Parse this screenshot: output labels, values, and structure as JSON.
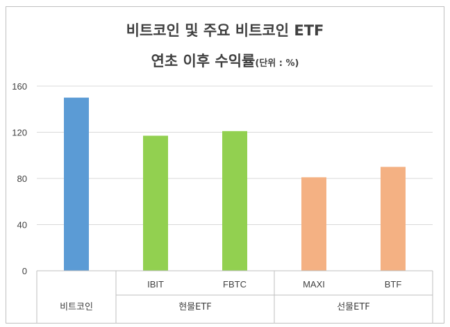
{
  "chart_data": {
    "type": "bar",
    "title_line1": "비트코인 및 주요 비트코인 ETF",
    "title_line2": "연초 이후 수익률",
    "title_unit": "(단위 : %)",
    "categories": [
      "",
      "IBIT",
      "FBTC",
      "MAXI",
      "BTF"
    ],
    "groups": [
      {
        "label": "비트코인",
        "span": 1
      },
      {
        "label": "현물ETF",
        "span": 2
      },
      {
        "label": "선물ETF",
        "span": 2
      }
    ],
    "values": [
      150,
      117,
      121,
      81,
      90
    ],
    "colors": [
      "#5b9bd5",
      "#92d050",
      "#92d050",
      "#f4b183",
      "#f4b183"
    ],
    "yticks": [
      0,
      40,
      80,
      120,
      160
    ],
    "ylim": [
      0,
      160
    ],
    "grid": true
  }
}
